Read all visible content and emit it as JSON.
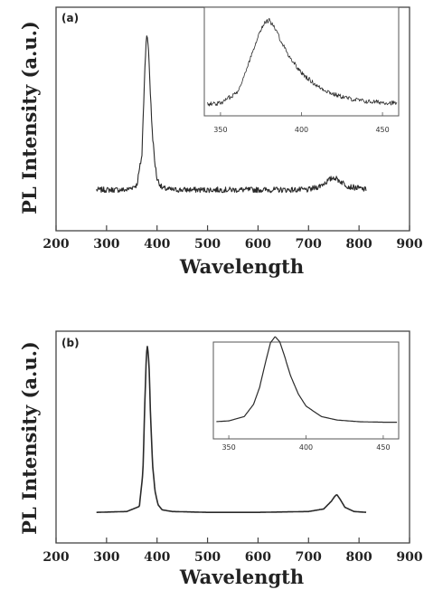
{
  "chart_data": [
    {
      "type": "line",
      "panel_label": "(a)",
      "xlabel": "Wavelength",
      "ylabel": "PL Intensity (a.u.)",
      "xlim": [
        200,
        900
      ],
      "xticks": [
        200,
        300,
        400,
        500,
        600,
        700,
        800,
        900
      ],
      "noisy": true,
      "series": [
        {
          "x": [
            280,
            340,
            360,
            370,
            375,
            378,
            380,
            383,
            386,
            390,
            395,
            400,
            410,
            430,
            500,
            600,
            700,
            720,
            740,
            750,
            760,
            780,
            800,
            815
          ],
          "y": [
            0.03,
            0.03,
            0.06,
            0.25,
            0.72,
            0.96,
            1.0,
            0.93,
            0.7,
            0.42,
            0.22,
            0.1,
            0.04,
            0.03,
            0.03,
            0.03,
            0.03,
            0.05,
            0.09,
            0.11,
            0.09,
            0.05,
            0.04,
            0.03
          ]
        }
      ],
      "inset": {
        "xlim": [
          340,
          460
        ],
        "xticks": [
          350,
          400,
          450
        ],
        "noisy": true,
        "series": [
          {
            "x": [
              340,
              350,
              360,
              365,
              370,
              375,
              378,
              380,
              383,
              387,
              392,
              400,
              410,
              420,
              430,
              440,
              450,
              460
            ],
            "y": [
              0.05,
              0.06,
              0.18,
              0.38,
              0.66,
              0.9,
              0.98,
              1.0,
              0.92,
              0.78,
              0.6,
              0.4,
              0.25,
              0.16,
              0.11,
              0.08,
              0.07,
              0.06
            ]
          }
        ]
      }
    },
    {
      "type": "line",
      "panel_label": "(b)",
      "xlabel": "Wavelength",
      "ylabel": "PL Intensity (a.u.)",
      "xlim": [
        200,
        900
      ],
      "xticks": [
        200,
        300,
        400,
        500,
        600,
        700,
        800,
        900
      ],
      "noisy": false,
      "series": [
        {
          "x": [
            280,
            340,
            365,
            372,
            376,
            379,
            381,
            384,
            387,
            391,
            396,
            402,
            410,
            430,
            500,
            600,
            700,
            730,
            745,
            752,
            756,
            762,
            772,
            790,
            815
          ],
          "y": [
            0.015,
            0.02,
            0.05,
            0.25,
            0.68,
            0.95,
            1.0,
            0.9,
            0.6,
            0.3,
            0.14,
            0.06,
            0.03,
            0.02,
            0.015,
            0.015,
            0.02,
            0.035,
            0.08,
            0.11,
            0.12,
            0.095,
            0.045,
            0.02,
            0.015
          ]
        }
      ],
      "inset": {
        "xlim": [
          340,
          460
        ],
        "xticks": [
          350,
          400,
          450
        ],
        "noisy": false,
        "series": [
          {
            "x": [
              340,
              350,
              360,
              366,
              370,
              374,
              377,
              380,
              383,
              386,
              390,
              395,
              400,
              410,
              420,
              435,
              450,
              460
            ],
            "y": [
              0.02,
              0.03,
              0.08,
              0.22,
              0.42,
              0.72,
              0.93,
              1.0,
              0.94,
              0.78,
              0.55,
              0.34,
              0.2,
              0.08,
              0.04,
              0.02,
              0.015,
              0.015
            ]
          }
        ]
      }
    }
  ]
}
